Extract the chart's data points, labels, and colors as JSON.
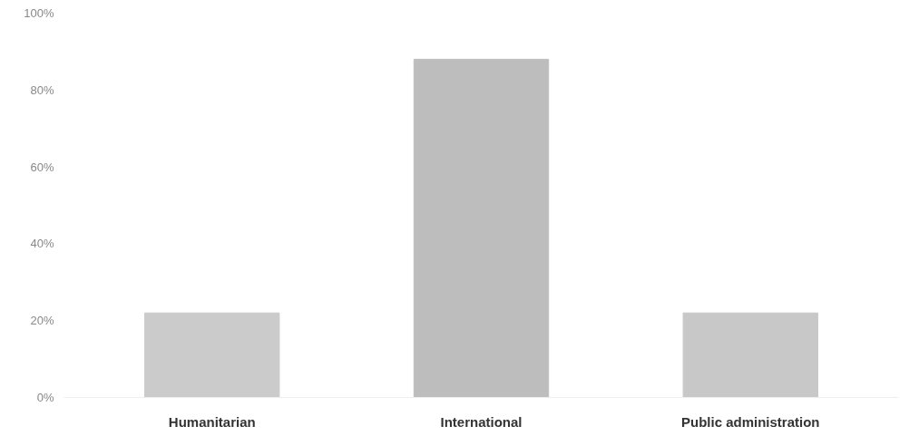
{
  "chart_data": {
    "type": "bar",
    "categories": [
      "Humanitarian",
      "International",
      "Public administration"
    ],
    "values": [
      22,
      88,
      22
    ],
    "colors": [
      "#cbcbcb",
      "#bdbdbd",
      "#c8c8c8"
    ],
    "ylim": [
      0,
      100
    ],
    "yticks": [
      {
        "value": 0,
        "label": "0%"
      },
      {
        "value": 20,
        "label": "20%"
      },
      {
        "value": 40,
        "label": "40%"
      },
      {
        "value": 60,
        "label": "60%"
      },
      {
        "value": 80,
        "label": "80%"
      },
      {
        "value": 100,
        "label": "100%"
      }
    ],
    "grid": false
  }
}
